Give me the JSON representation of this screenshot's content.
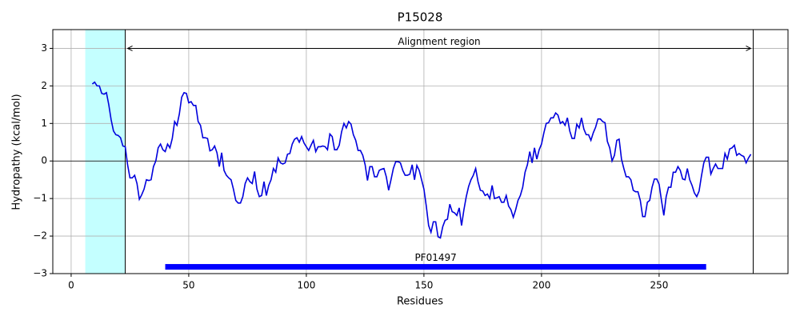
{
  "chart_data": {
    "type": "line",
    "title": "P15028",
    "x_label": "Residues",
    "y_label": "Hydropathy (kcal/mol)",
    "xlim": [
      -7.8,
      304.8
    ],
    "ylim": [
      -3,
      3.5
    ],
    "xticks": [
      0,
      50,
      100,
      150,
      200,
      250
    ],
    "yticks": [
      {
        "value": -3,
        "label": "−3"
      },
      {
        "value": -2,
        "label": "−2"
      },
      {
        "value": -1,
        "label": "−1"
      },
      0,
      1,
      2,
      3
    ],
    "grid": true,
    "shaded_region": [
      6,
      23
    ],
    "shade_color": "#c4ffff",
    "vlines": [
      23,
      290
    ],
    "hline": 0,
    "annotation": {
      "text": "Alignment region",
      "x": [
        23,
        290
      ],
      "y": 3
    },
    "domain": {
      "label": "PF01497",
      "x": [
        40,
        270
      ],
      "y": -2.82,
      "color": "#0000ff"
    },
    "x": [
      9,
      10,
      11,
      12,
      13,
      14,
      15,
      16,
      17,
      18,
      19,
      20,
      21,
      22,
      23,
      24,
      25,
      26,
      27,
      28,
      29,
      30,
      31,
      32,
      33,
      34,
      35,
      36,
      37,
      38,
      39,
      40,
      41,
      42,
      43,
      44,
      45,
      46,
      47,
      48,
      49,
      50,
      51,
      52,
      53,
      54,
      55,
      56,
      57,
      58,
      59,
      60,
      61,
      62,
      63,
      64,
      65,
      66,
      67,
      68,
      69,
      70,
      71,
      72,
      73,
      74,
      75,
      76,
      77,
      78,
      79,
      80,
      81,
      82,
      83,
      84,
      85,
      86,
      87,
      88,
      89,
      90,
      91,
      92,
      93,
      94,
      95,
      96,
      97,
      98,
      99,
      100,
      101,
      102,
      103,
      104,
      105,
      106,
      107,
      108,
      109,
      110,
      111,
      112,
      113,
      114,
      115,
      116,
      117,
      118,
      119,
      120,
      121,
      122,
      123,
      124,
      125,
      126,
      127,
      128,
      129,
      130,
      131,
      132,
      133,
      134,
      135,
      136,
      137,
      138,
      139,
      140,
      141,
      142,
      143,
      144,
      145,
      146,
      147,
      148,
      149,
      150,
      151,
      152,
      153,
      154,
      155,
      156,
      157,
      158,
      159,
      160,
      161,
      162,
      163,
      164,
      165,
      166,
      167,
      168,
      169,
      170,
      171,
      172,
      173,
      174,
      175,
      176,
      177,
      178,
      179,
      180,
      181,
      182,
      183,
      184,
      185,
      186,
      187,
      188,
      189,
      190,
      191,
      192,
      193,
      194,
      195,
      196,
      197,
      198,
      199,
      200,
      201,
      202,
      203,
      204,
      205,
      206,
      207,
      208,
      209,
      210,
      211,
      212,
      213,
      214,
      215,
      216,
      217,
      218,
      219,
      220,
      221,
      222,
      223,
      224,
      225,
      226,
      227,
      228,
      229,
      230,
      231,
      232,
      233,
      234,
      235,
      236,
      237,
      238,
      239,
      240,
      241,
      242,
      243,
      244,
      245,
      246,
      247,
      248,
      249,
      250,
      251,
      252,
      253,
      254,
      255,
      256,
      257,
      258,
      259,
      260,
      261,
      262,
      263,
      264,
      265,
      266,
      267,
      268,
      269,
      270,
      271,
      272,
      273,
      274,
      275,
      276,
      277,
      278,
      279,
      280,
      281,
      282,
      283,
      284,
      285,
      286,
      287,
      288,
      289
    ],
    "series": [
      {
        "color": "#0000dd",
        "values": [
          2.05,
          2.1,
          2.0,
          2.0,
          1.8,
          1.78,
          1.82,
          1.5,
          1.1,
          0.8,
          0.7,
          0.68,
          0.62,
          0.4,
          0.38,
          -0.1,
          -0.45,
          -0.45,
          -0.38,
          -0.6,
          -1.02,
          -0.9,
          -0.75,
          -0.5,
          -0.52,
          -0.5,
          -0.15,
          0.0,
          0.35,
          0.45,
          0.3,
          0.25,
          0.45,
          0.35,
          0.6,
          1.05,
          0.95,
          1.25,
          1.7,
          1.82,
          1.8,
          1.55,
          1.58,
          1.48,
          1.48,
          1.05,
          0.95,
          0.62,
          0.62,
          0.6,
          0.27,
          0.3,
          0.4,
          0.22,
          -0.15,
          0.22,
          -0.25,
          -0.38,
          -0.45,
          -0.5,
          -0.75,
          -1.05,
          -1.12,
          -1.12,
          -0.95,
          -0.6,
          -0.45,
          -0.55,
          -0.6,
          -0.28,
          -0.75,
          -0.95,
          -0.92,
          -0.55,
          -0.92,
          -0.65,
          -0.5,
          -0.2,
          -0.3,
          0.08,
          -0.05,
          -0.08,
          -0.05,
          0.18,
          0.2,
          0.45,
          0.58,
          0.62,
          0.5,
          0.65,
          0.48,
          0.38,
          0.28,
          0.42,
          0.55,
          0.25,
          0.38,
          0.38,
          0.4,
          0.38,
          0.3,
          0.72,
          0.65,
          0.3,
          0.3,
          0.42,
          0.78,
          1.0,
          0.88,
          1.05,
          0.98,
          0.7,
          0.55,
          0.28,
          0.28,
          0.15,
          -0.1,
          -0.52,
          -0.15,
          -0.15,
          -0.42,
          -0.42,
          -0.25,
          -0.22,
          -0.2,
          -0.42,
          -0.78,
          -0.5,
          -0.2,
          -0.02,
          -0.02,
          -0.05,
          -0.25,
          -0.38,
          -0.38,
          -0.35,
          -0.1,
          -0.5,
          -0.12,
          -0.25,
          -0.5,
          -0.75,
          -1.2,
          -1.72,
          -1.9,
          -1.62,
          -1.62,
          -2.02,
          -2.05,
          -1.75,
          -1.58,
          -1.55,
          -1.15,
          -1.35,
          -1.38,
          -1.45,
          -1.25,
          -1.72,
          -1.3,
          -0.95,
          -0.68,
          -0.5,
          -0.38,
          -0.2,
          -0.55,
          -0.78,
          -0.8,
          -0.92,
          -0.88,
          -1.0,
          -0.65,
          -1.0,
          -0.98,
          -0.95,
          -1.1,
          -1.1,
          -0.92,
          -1.2,
          -1.3,
          -1.5,
          -1.3,
          -1.05,
          -0.92,
          -0.7,
          -0.3,
          -0.1,
          0.25,
          -0.05,
          0.35,
          0.05,
          0.3,
          0.45,
          0.75,
          1.0,
          1.02,
          1.15,
          1.15,
          1.28,
          1.22,
          1.0,
          1.05,
          0.95,
          1.15,
          0.8,
          0.6,
          0.6,
          0.98,
          0.88,
          1.15,
          0.85,
          0.7,
          0.7,
          0.55,
          0.75,
          0.9,
          1.12,
          1.12,
          1.05,
          1.02,
          0.52,
          0.35,
          0.0,
          0.15,
          0.55,
          0.58,
          0.05,
          -0.2,
          -0.42,
          -0.42,
          -0.5,
          -0.78,
          -0.82,
          -0.82,
          -1.05,
          -1.48,
          -1.48,
          -1.1,
          -1.05,
          -0.7,
          -0.48,
          -0.48,
          -0.62,
          -1.05,
          -1.45,
          -0.95,
          -0.7,
          -0.7,
          -0.3,
          -0.3,
          -0.15,
          -0.25,
          -0.48,
          -0.5,
          -0.2,
          -0.5,
          -0.65,
          -0.85,
          -0.95,
          -0.8,
          -0.4,
          -0.05,
          0.1,
          0.1,
          -0.35,
          -0.2,
          -0.08,
          -0.2,
          -0.2,
          -0.2,
          0.2,
          0.05,
          0.32,
          0.35,
          0.42,
          0.15,
          0.2,
          0.15,
          0.12,
          -0.05,
          0.08,
          0.18
        ]
      }
    ]
  }
}
